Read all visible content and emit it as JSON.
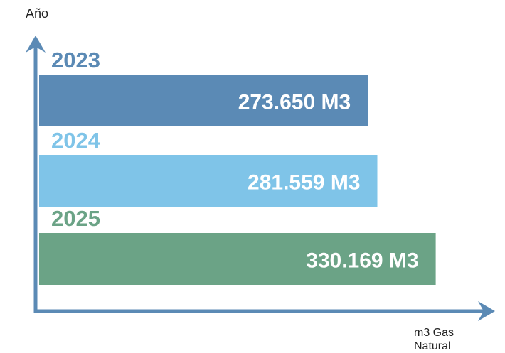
{
  "chart_data": {
    "type": "bar",
    "orientation": "horizontal",
    "y_label": "Año",
    "x_label": "m3 Gas Natural",
    "categories": [
      "2023",
      "2024",
      "2025"
    ],
    "values": [
      273650,
      281559,
      330169
    ],
    "value_labels": [
      "273.650 M3",
      "281.559 M3",
      "330.169 M3"
    ],
    "colors": [
      "#5b8ab5",
      "#7fc4e8",
      "#6ba386"
    ],
    "axis_color": "#5b8ab5",
    "xlim": [
      0,
      376000
    ]
  }
}
